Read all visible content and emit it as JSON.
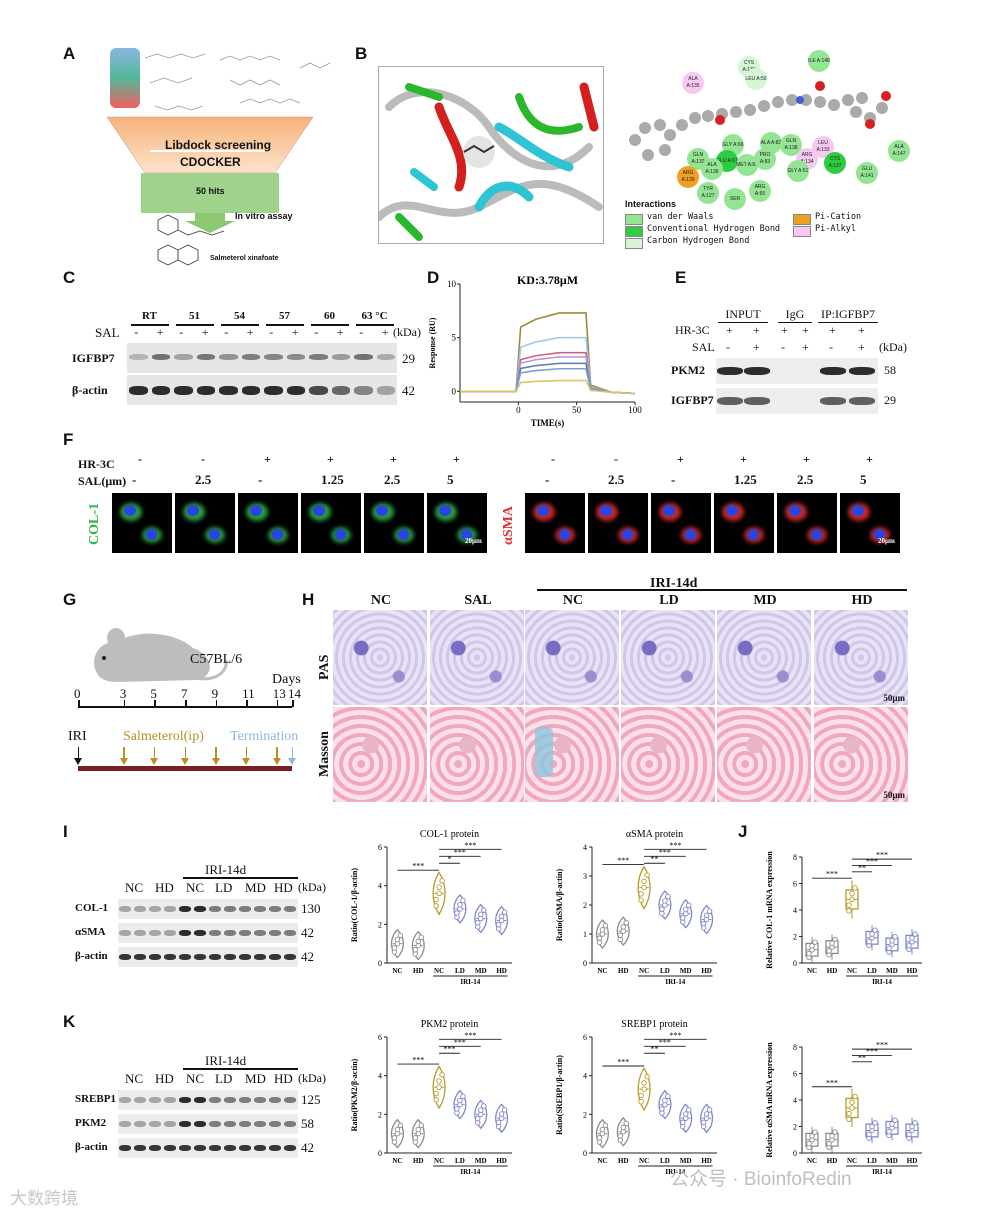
{
  "panel_letters": {
    "A": "A",
    "B": "B",
    "C": "C",
    "D": "D",
    "E": "E",
    "F": "F",
    "G": "G",
    "H": "H",
    "I": "I",
    "J": "J",
    "K": "K"
  },
  "panelA": {
    "step1": "Libdock screening",
    "step2": "CDOCKER",
    "step3": "50 hits",
    "step4": "In vitro assay",
    "compound": "Salmeterol xinafoate"
  },
  "panelB": {
    "legend_title": "Interactions",
    "legend": [
      {
        "label": "van der Waals",
        "color": "#93e493"
      },
      {
        "label": "Conventional Hydrogen Bond",
        "color": "#2ecc40"
      },
      {
        "label": "Carbon Hydrogen Bond",
        "color": "#d6f5d6"
      },
      {
        "label": "Pi-Cation",
        "color": "#f0a020"
      },
      {
        "label": "Pi-Alkyl",
        "color": "#f5c9f0"
      }
    ],
    "residues": [
      {
        "t": "ALA A:135",
        "c": "#f5c9f0"
      },
      {
        "t": "CYS A:131",
        "c": "#d6f5d6"
      },
      {
        "t": "LEU A:50",
        "c": "#d6f5d6"
      },
      {
        "t": "ILE A:148",
        "c": "#93e493"
      },
      {
        "t": "GLY A:66",
        "c": "#93e493"
      },
      {
        "t": "ALA A:82",
        "c": "#93e493"
      },
      {
        "t": "GLN A:138",
        "c": "#93e493"
      },
      {
        "t": "LEU A:133",
        "c": "#f5c9f0"
      },
      {
        "t": "GLN A:132",
        "c": "#93e493"
      },
      {
        "t": "GLU A:67",
        "c": "#2ecc40"
      },
      {
        "t": "MET A:85",
        "c": "#93e493"
      },
      {
        "t": "PRO A:83",
        "c": "#93e493"
      },
      {
        "t": "ARG A:134",
        "c": "#f5c9f0"
      },
      {
        "t": "ALA A:136",
        "c": "#93e493"
      },
      {
        "t": "GLY A:51",
        "c": "#93e493"
      },
      {
        "t": "CYS A:137",
        "c": "#2ecc40"
      },
      {
        "t": "ALA A:147",
        "c": "#93e493"
      },
      {
        "t": "ARG A:139",
        "c": "#f0a020"
      },
      {
        "t": "TYR A:127",
        "c": "#93e493"
      },
      {
        "t": "SER",
        "c": "#93e493"
      },
      {
        "t": "ARG A:65",
        "c": "#93e493"
      },
      {
        "t": "GLU A:141",
        "c": "#93e493"
      }
    ]
  },
  "panelC": {
    "temps": [
      "RT",
      "51",
      "54",
      "57",
      "60",
      "63 °C"
    ],
    "sal_label": "SAL",
    "minus": "-",
    "plus": "+",
    "kda": "(kDa)",
    "rows": [
      {
        "name": "IGFBP7",
        "kda": "29"
      },
      {
        "name": "β-actin",
        "kda": "42"
      }
    ]
  },
  "panelD": {
    "chart_data": {
      "type": "line",
      "title": "KD:3.78μM",
      "xlabel": "TIME(s)",
      "ylabel": "Response (RU)",
      "xlim": [
        -50,
        100
      ],
      "ylim": [
        -1,
        10
      ],
      "xticks": [
        "0",
        "50",
        "100"
      ],
      "yticks": [
        "0",
        "5",
        "10"
      ],
      "series": [
        {
          "color": "#a08a3a",
          "plateau": 7.3
        },
        {
          "color": "#9ec8e8",
          "plateau": 5.0
        },
        {
          "color": "#d06080",
          "plateau": 3.6
        },
        {
          "color": "#b89ad8",
          "plateau": 3.2
        },
        {
          "color": "#5a78b8",
          "plateau": 2.6
        },
        {
          "color": "#7aa0d0",
          "plateau": 2.1
        },
        {
          "color": "#d8c860",
          "plateau": 1.0
        }
      ]
    }
  },
  "panelE": {
    "groups": [
      "INPUT",
      "IgG",
      "IP:IGFBP7"
    ],
    "hr3c": "HR-3C",
    "sal": "SAL",
    "plus": "+",
    "minus": "-",
    "kda": "(kDa)",
    "rows": [
      {
        "name": "PKM2",
        "kda": "58"
      },
      {
        "name": "IGFBP7",
        "kda": "29"
      }
    ]
  },
  "panelF": {
    "hr3c": "HR-3C",
    "sal": "SAL(μm)",
    "hr_values": [
      "-",
      "-",
      "+",
      "+",
      "+",
      "+"
    ],
    "sal_values": [
      "-",
      "2.5",
      "-",
      "1.25",
      "2.5",
      "5"
    ],
    "left_stain": "COL-1",
    "right_stain": "αSMA",
    "scale": "20μm"
  },
  "panelG": {
    "strain": "C57BL/6",
    "days_label": "Days",
    "ticks": [
      "0",
      "3",
      "5",
      "7",
      "9",
      "11",
      "13",
      "14"
    ],
    "iri": "IRI",
    "treatment": "Salmeterol(ip)",
    "termination": "Termination"
  },
  "panelH": {
    "top_labels": [
      "NC",
      "SAL",
      "NC",
      "LD",
      "MD",
      "HD"
    ],
    "group": "IRI-14d",
    "rows": [
      "PAS",
      "Masson"
    ],
    "scale": "50μm"
  },
  "panelI": {
    "groups_top": "IRI-14d",
    "lanes": [
      "NC",
      "HD",
      "NC",
      "LD",
      "MD",
      "HD"
    ],
    "kda": "(kDa)",
    "rows": [
      {
        "name": "COL-1",
        "kda": "130"
      },
      {
        "name": "αSMA",
        "kda": "42"
      },
      {
        "name": "β-actin",
        "kda": "42"
      }
    ]
  },
  "panelK": {
    "groups_top": "IRI-14d",
    "lanes": [
      "NC",
      "HD",
      "NC",
      "LD",
      "MD",
      "HD"
    ],
    "kda": "(kDa)",
    "rows": [
      {
        "name": "SREBP1",
        "kda": "125"
      },
      {
        "name": "PKM2",
        "kda": "58"
      },
      {
        "name": "β-actin",
        "kda": "42"
      }
    ]
  },
  "chart_data": [
    {
      "type": "violin",
      "title": "COL-1 protein",
      "ylabel": "Ratio(COL-1/β-actin)",
      "ylim": [
        0,
        6
      ],
      "yticks": [
        "0",
        "2",
        "4",
        "6"
      ],
      "categories": [
        "NC",
        "HD",
        "NC",
        "LD",
        "MD",
        "HD"
      ],
      "group_label": "IRI-14",
      "values": [
        1.0,
        0.9,
        3.6,
        2.8,
        2.3,
        2.2
      ],
      "sig": [
        "***",
        "***",
        "***",
        "*"
      ]
    },
    {
      "type": "violin",
      "title": "αSMA protein",
      "ylabel": "Ratio(αSMA/β-actin)",
      "ylim": [
        0,
        4
      ],
      "yticks": [
        "0",
        "1",
        "2",
        "3",
        "4"
      ],
      "categories": [
        "NC",
        "HD",
        "NC",
        "LD",
        "MD",
        "HD"
      ],
      "group_label": "IRI-14",
      "values": [
        1.0,
        1.1,
        2.6,
        2.0,
        1.7,
        1.5
      ],
      "sig": [
        "***",
        "***",
        "***",
        "**"
      ]
    },
    {
      "type": "box",
      "title": "",
      "ylabel": "Relative COL-1 mRNA expression",
      "ylim": [
        0,
        8
      ],
      "yticks": [
        "0",
        "2",
        "4",
        "6",
        "8"
      ],
      "categories": [
        "NC",
        "HD",
        "NC",
        "LD",
        "MD",
        "HD"
      ],
      "group_label": "IRI-14",
      "values": [
        1.0,
        1.2,
        4.8,
        1.9,
        1.4,
        1.6
      ],
      "sig": [
        "***",
        "***",
        "***",
        "**"
      ]
    },
    {
      "type": "violin",
      "title": "PKM2 protein",
      "ylabel": "Ratio(PKM2/β-actin)",
      "ylim": [
        0,
        6
      ],
      "yticks": [
        "0",
        "2",
        "4",
        "6"
      ],
      "categories": [
        "NC",
        "HD",
        "NC",
        "LD",
        "MD",
        "HD"
      ],
      "group_label": "IRI-14",
      "values": [
        1.0,
        1.0,
        3.4,
        2.5,
        2.0,
        1.8
      ],
      "sig": [
        "***",
        "***",
        "***",
        "***"
      ]
    },
    {
      "type": "violin",
      "title": "SREBP1 protein",
      "ylabel": "Ratio(SREBP1/β-actin)",
      "ylim": [
        0,
        6
      ],
      "yticks": [
        "0",
        "2",
        "4",
        "6"
      ],
      "categories": [
        "NC",
        "HD",
        "NC",
        "LD",
        "MD",
        "HD"
      ],
      "group_label": "IRI-14",
      "values": [
        1.0,
        1.1,
        3.3,
        2.5,
        1.8,
        1.8
      ],
      "sig": [
        "***",
        "***",
        "***",
        "**"
      ]
    },
    {
      "type": "box",
      "title": "",
      "ylabel": "Relative αSMA mRNA expression",
      "ylim": [
        0,
        8
      ],
      "yticks": [
        "0",
        "2",
        "4",
        "6",
        "8"
      ],
      "categories": [
        "NC",
        "HD",
        "NC",
        "LD",
        "MD",
        "HD"
      ],
      "group_label": "IRI-14",
      "values": [
        1.0,
        1.0,
        3.4,
        1.7,
        1.9,
        1.7
      ],
      "sig": [
        "***",
        "***",
        "***",
        "**"
      ]
    }
  ],
  "colors": {
    "ctrl": "#8c8c8c",
    "nc": "#b89a2a",
    "treat": "#8088c8"
  },
  "watermark_left": "大数跨境",
  "watermark_right": "公众号 · BioinfoRedin"
}
